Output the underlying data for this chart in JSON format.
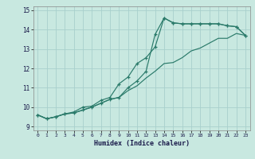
{
  "title": "",
  "xlabel": "Humidex (Indice chaleur)",
  "ylabel": "",
  "bg_color": "#c8e8e0",
  "grid_color": "#a8d0cc",
  "line_color": "#2a7a6a",
  "xlim": [
    -0.5,
    23.5
  ],
  "ylim": [
    8.8,
    15.2
  ],
  "xticks": [
    0,
    1,
    2,
    3,
    4,
    5,
    6,
    7,
    8,
    9,
    10,
    11,
    12,
    13,
    14,
    15,
    16,
    17,
    18,
    19,
    20,
    21,
    22,
    23
  ],
  "yticks": [
    9,
    10,
    11,
    12,
    13,
    14,
    15
  ],
  "line1_x": [
    0,
    1,
    2,
    3,
    4,
    5,
    6,
    7,
    8,
    9,
    10,
    11,
    12,
    13,
    14,
    15,
    16,
    17,
    18,
    19,
    20,
    21,
    22,
    23
  ],
  "line1_y": [
    9.6,
    9.4,
    9.5,
    9.65,
    9.7,
    9.85,
    10.0,
    10.2,
    10.4,
    10.5,
    11.0,
    11.35,
    11.85,
    13.75,
    14.6,
    14.35,
    14.3,
    14.3,
    14.3,
    14.3,
    14.3,
    14.2,
    14.15,
    13.7
  ],
  "line2_x": [
    0,
    1,
    2,
    3,
    4,
    5,
    6,
    7,
    8,
    9,
    10,
    11,
    12,
    13,
    14,
    15,
    16,
    17,
    18,
    19,
    20,
    21,
    22,
    23
  ],
  "line2_y": [
    9.6,
    9.4,
    9.5,
    9.65,
    9.75,
    10.0,
    10.05,
    10.35,
    10.5,
    11.2,
    11.55,
    12.25,
    12.55,
    13.1,
    14.6,
    14.35,
    14.3,
    14.3,
    14.3,
    14.3,
    14.3,
    14.2,
    14.15,
    13.7
  ],
  "line3_x": [
    0,
    1,
    2,
    3,
    4,
    5,
    6,
    7,
    8,
    9,
    10,
    11,
    12,
    13,
    14,
    15,
    16,
    17,
    18,
    19,
    20,
    21,
    22,
    23
  ],
  "line3_y": [
    9.6,
    9.4,
    9.5,
    9.65,
    9.7,
    9.85,
    10.0,
    10.2,
    10.4,
    10.5,
    10.85,
    11.1,
    11.5,
    11.85,
    12.25,
    12.3,
    12.55,
    12.9,
    13.05,
    13.3,
    13.55,
    13.55,
    13.8,
    13.7
  ]
}
